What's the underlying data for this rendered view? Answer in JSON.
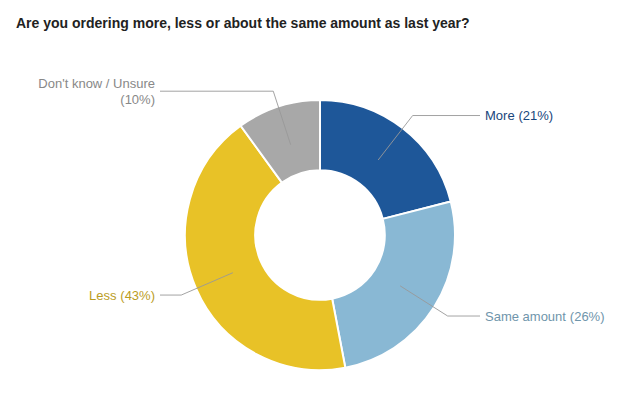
{
  "chart_data": {
    "type": "pie",
    "title": "Are you ordering more, less or about the same amount as last year?",
    "categories": [
      "More",
      "Same amount",
      "Less",
      "Don't know / Unsure"
    ],
    "values": [
      21,
      26,
      43,
      10
    ],
    "value_labels": [
      "(21%)",
      "(26%)",
      "(43%)",
      "(10%)"
    ],
    "data_labels": true,
    "colors": [
      "#1e5799",
      "#89b8d4",
      "#e8c227",
      "#a8a8a8"
    ]
  }
}
